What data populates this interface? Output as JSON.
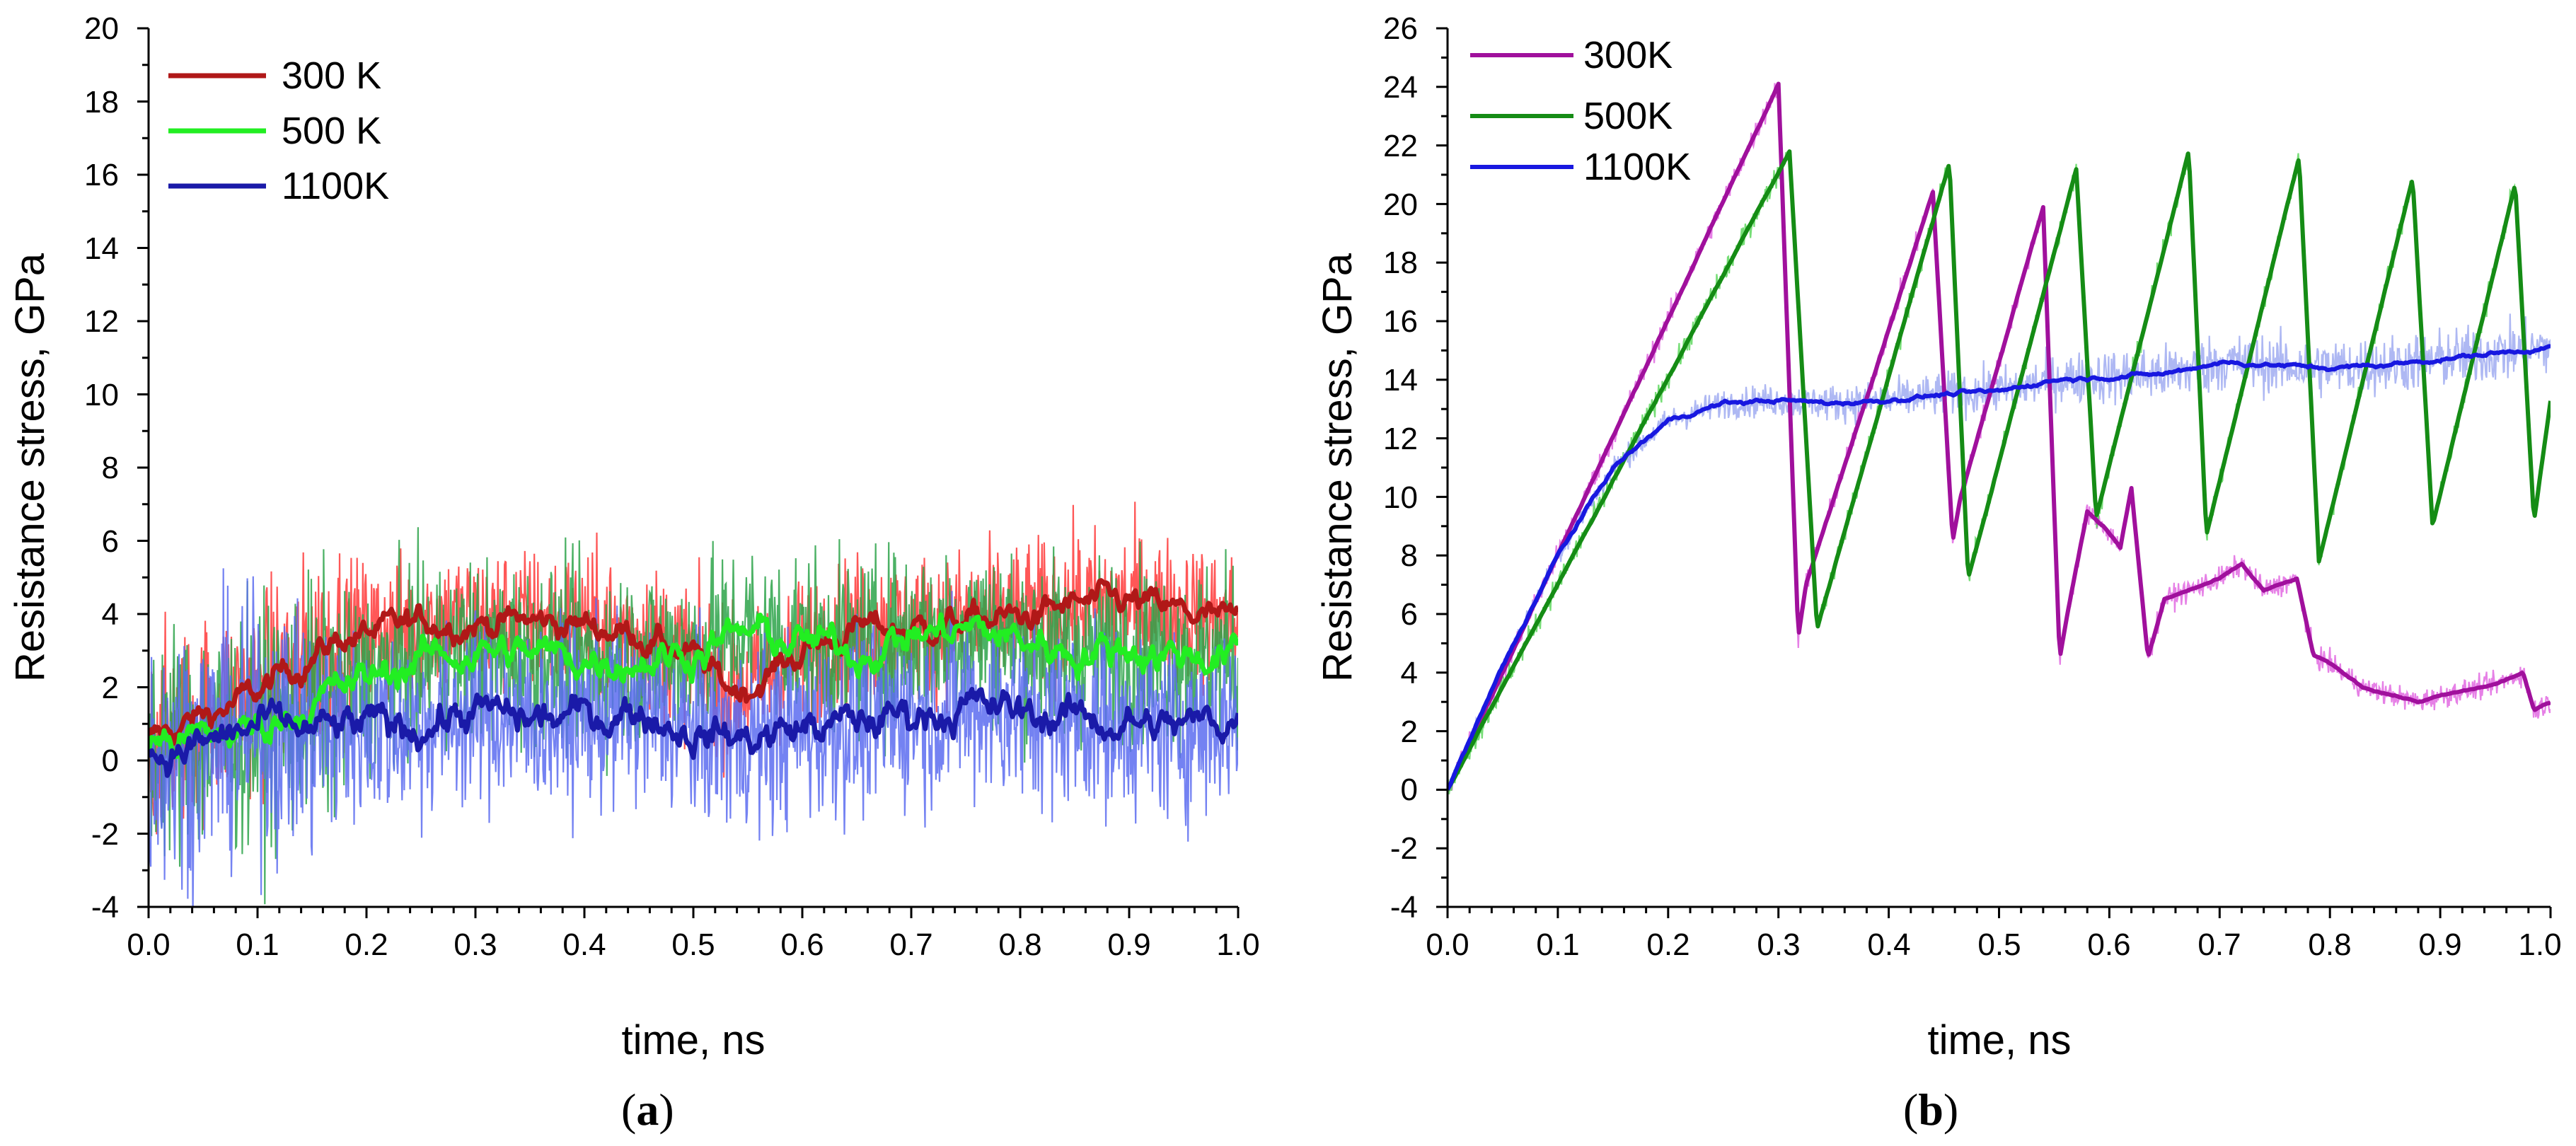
{
  "chart_data": [
    {
      "panel": "a",
      "type": "line",
      "panel_label": {
        "open": "(",
        "letter": "a",
        "close": ")"
      },
      "xlabel": "time, ns",
      "ylabel": "Resistance stress, GPa",
      "xlim": [
        0,
        1.0
      ],
      "ylim": [
        -4,
        20
      ],
      "xticks": [
        "0.0",
        "0.1",
        "0.2",
        "0.3",
        "0.4",
        "0.5",
        "0.6",
        "0.7",
        "0.8",
        "0.9",
        "1.0"
      ],
      "yticks": [
        "-4",
        "-2",
        "0",
        "2",
        "4",
        "6",
        "8",
        "10",
        "12",
        "14",
        "16",
        "18",
        "20"
      ],
      "legend_position": "top-left",
      "series": [
        {
          "name": "300 K",
          "color": "#b01818",
          "noise_color": "#ff3a3a",
          "noise_amplitude": 1.8,
          "x": [
            0,
            0.05,
            0.1,
            0.13,
            0.18,
            0.22,
            0.26,
            0.3,
            0.35,
            0.4,
            0.45,
            0.5,
            0.53,
            0.55,
            0.6,
            0.65,
            0.7,
            0.75,
            0.8,
            0.85,
            0.9,
            0.95,
            1.0
          ],
          "values": [
            0.5,
            1.2,
            1.8,
            2.5,
            3.4,
            3.5,
            3.8,
            3.8,
            3.8,
            3.7,
            3.5,
            2.8,
            2.0,
            2.0,
            3.0,
            3.6,
            3.6,
            3.8,
            3.9,
            4.2,
            4.3,
            4.0,
            3.7
          ]
        },
        {
          "name": "500 K",
          "color": "#22ee22",
          "noise_color": "#2da34a",
          "noise_amplitude": 2.2,
          "x": [
            0,
            0.05,
            0.1,
            0.15,
            0.2,
            0.25,
            0.3,
            0.35,
            0.4,
            0.45,
            0.5,
            0.55,
            0.6,
            0.65,
            0.7,
            0.75,
            0.8,
            0.85,
            0.9,
            0.95,
            1.0
          ],
          "values": [
            0.5,
            0.6,
            0.9,
            1.6,
            2.2,
            2.8,
            3.0,
            2.9,
            2.8,
            2.8,
            3.0,
            3.5,
            3.2,
            3.0,
            3.4,
            3.6,
            3.3,
            3.0,
            3.1,
            2.9,
            2.9
          ]
        },
        {
          "name": "1100K",
          "color": "#1a1aa8",
          "noise_color": "#5c6cf0",
          "noise_amplitude": 2.3,
          "x": [
            0,
            0.05,
            0.1,
            0.15,
            0.2,
            0.25,
            0.3,
            0.35,
            0.4,
            0.45,
            0.5,
            0.55,
            0.6,
            0.65,
            0.7,
            0.75,
            0.8,
            0.85,
            0.9,
            0.95,
            1.0
          ],
          "values": [
            0.1,
            0.4,
            0.9,
            0.8,
            0.9,
            1.0,
            1.3,
            1.1,
            1.2,
            1.4,
            0.8,
            0.6,
            0.9,
            1.0,
            1.3,
            1.5,
            1.3,
            1.2,
            1.0,
            0.9,
            1.2
          ]
        }
      ]
    },
    {
      "panel": "b",
      "type": "line",
      "panel_label": {
        "open": "(",
        "letter": "b",
        "close": ")"
      },
      "xlabel": "time, ns",
      "ylabel": "Resistance stress, GPa",
      "xlim": [
        0,
        1.0
      ],
      "ylim": [
        -4,
        26
      ],
      "xticks": [
        "0.0",
        "0.1",
        "0.2",
        "0.3",
        "0.4",
        "0.5",
        "0.6",
        "0.7",
        "0.8",
        "0.9",
        "1.0"
      ],
      "yticks": [
        "-4",
        "-2",
        "0",
        "2",
        "4",
        "6",
        "8",
        "10",
        "12",
        "14",
        "16",
        "18",
        "20",
        "22",
        "24",
        "26"
      ],
      "legend_position": "top-left",
      "series": [
        {
          "name": "300K",
          "color": "#a0109c",
          "noise_color": "#e060e0",
          "noise_amplitude": 0.35,
          "x": [
            0,
            0.3,
            0.318,
            0.325,
            0.44,
            0.458,
            0.465,
            0.54,
            0.555,
            0.562,
            0.58,
            0.595,
            0.61,
            0.62,
            0.635,
            0.65,
            0.7,
            0.72,
            0.74,
            0.77,
            0.785,
            0.8,
            0.83,
            0.85,
            0.88,
            0.9,
            0.95,
            0.975,
            0.985,
            1.0
          ],
          "values": [
            0,
            24.1,
            5.2,
            7.0,
            20.4,
            8.5,
            10.0,
            19.9,
            4.5,
            6.0,
            9.5,
            9.0,
            8.3,
            10.3,
            4.5,
            6.5,
            7.2,
            7.7,
            6.8,
            7.2,
            4.6,
            4.3,
            3.5,
            3.3,
            3.0,
            3.2,
            3.6,
            4.0,
            2.7,
            3.0
          ]
        },
        {
          "name": "500K",
          "color": "#158c15",
          "noise_color": "#55d655",
          "noise_amplitude": 0.35,
          "x": [
            0,
            0.31,
            0.335,
            0.455,
            0.472,
            0.57,
            0.588,
            0.672,
            0.688,
            0.772,
            0.79,
            0.875,
            0.893,
            0.968,
            0.985,
            1.0
          ],
          "values": [
            0,
            21.8,
            5.5,
            21.4,
            7.2,
            21.2,
            9.3,
            21.8,
            8.7,
            21.6,
            7.8,
            20.9,
            9.0,
            20.7,
            9.2,
            13.3
          ]
        },
        {
          "name": "1100K",
          "color": "#1818e0",
          "noise_color": "#9aa6f0",
          "noise_amplitude": 0.9,
          "x": [
            0,
            0.05,
            0.1,
            0.15,
            0.2,
            0.25,
            0.3,
            0.35,
            0.4,
            0.45,
            0.5,
            0.55,
            0.6,
            0.65,
            0.7,
            0.75,
            0.8,
            0.85,
            0.9,
            0.95,
            1.0
          ],
          "values": [
            0,
            4.2,
            8.0,
            11.0,
            12.6,
            13.2,
            13.3,
            13.2,
            13.3,
            13.5,
            13.6,
            14.0,
            14.1,
            14.2,
            14.6,
            14.5,
            14.4,
            14.5,
            14.7,
            14.9,
            15.1
          ]
        }
      ]
    }
  ]
}
